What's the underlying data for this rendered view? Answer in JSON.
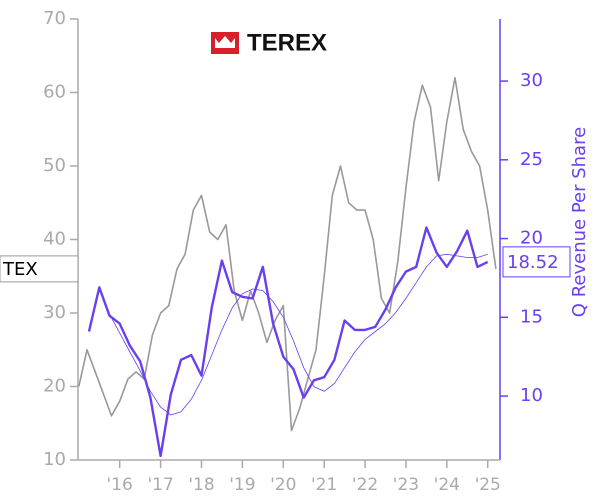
{
  "chart_data": {
    "type": "line",
    "title": "TEREX",
    "y2_label": "Q Revenue Per Share",
    "xlim": [
      2014.98,
      2025.3
    ],
    "xticks": [
      {
        "value": 2016,
        "label": "'16"
      },
      {
        "value": 2017,
        "label": "'17"
      },
      {
        "value": 2018,
        "label": "'18"
      },
      {
        "value": 2019,
        "label": "'19"
      },
      {
        "value": 2020,
        "label": "'20"
      },
      {
        "value": 2021,
        "label": "'21"
      },
      {
        "value": 2022,
        "label": "'22"
      },
      {
        "value": 2023,
        "label": "'23"
      },
      {
        "value": 2024,
        "label": "'24"
      },
      {
        "value": 2025,
        "label": "'25"
      }
    ],
    "ylim": [
      10,
      70
    ],
    "yticks": [
      10,
      20,
      30,
      40,
      50,
      60,
      70
    ],
    "y2lim": [
      5.94,
      33.94
    ],
    "y2ticks": [
      10,
      15,
      20,
      25,
      30
    ],
    "series": [
      {
        "name": "TEX",
        "color": "#999999",
        "line_width": 1.6,
        "axis": "y",
        "x": [
          2015.0,
          2015.2,
          2015.4,
          2015.6,
          2015.8,
          2016.0,
          2016.2,
          2016.4,
          2016.6,
          2016.8,
          2017.0,
          2017.2,
          2017.4,
          2017.6,
          2017.8,
          2018.0,
          2018.2,
          2018.4,
          2018.6,
          2018.8,
          2019.0,
          2019.2,
          2019.4,
          2019.6,
          2019.8,
          2020.0,
          2020.2,
          2020.4,
          2020.6,
          2020.8,
          2021.0,
          2021.2,
          2021.4,
          2021.6,
          2021.8,
          2022.0,
          2022.2,
          2022.4,
          2022.6,
          2022.8,
          2023.0,
          2023.2,
          2023.4,
          2023.6,
          2023.8,
          2024.0,
          2024.2,
          2024.4,
          2024.6,
          2024.8,
          2025.0,
          2025.2
        ],
        "values": [
          20,
          25,
          22,
          19,
          16,
          18,
          21,
          22,
          21,
          27,
          30,
          31,
          36,
          38,
          44,
          46,
          41,
          40,
          42,
          33,
          29,
          33,
          30,
          26,
          29,
          31,
          14,
          17,
          21,
          25,
          35,
          46,
          50,
          45,
          44,
          44,
          40,
          32,
          30,
          37,
          47,
          56,
          61,
          58,
          48,
          56,
          62,
          55,
          52,
          50,
          44,
          36
        ]
      },
      {
        "color": "#6a3ff0",
        "line_width": 2.4,
        "axis": "y2",
        "x": [
          2015.25,
          2015.5,
          2015.75,
          2016.0,
          2016.25,
          2016.5,
          2016.75,
          2017.0,
          2017.25,
          2017.5,
          2017.75,
          2018.0,
          2018.25,
          2018.5,
          2018.75,
          2019.0,
          2019.25,
          2019.5,
          2019.75,
          2020.0,
          2020.25,
          2020.5,
          2020.75,
          2021.0,
          2021.25,
          2021.5,
          2021.75,
          2022.0,
          2022.25,
          2022.5,
          2022.75,
          2023.0,
          2023.25,
          2023.5,
          2023.75,
          2024.0,
          2024.25,
          2024.5,
          2024.75,
          2025.0
        ],
        "values": [
          14.1,
          16.9,
          15.1,
          14.6,
          13.2,
          12.2,
          9.9,
          6.2,
          10.1,
          12.3,
          12.6,
          11.3,
          15.6,
          18.6,
          16.6,
          16.3,
          16.2,
          18.2,
          14.6,
          12.5,
          11.7,
          9.9,
          11.0,
          11.2,
          12.3,
          14.8,
          14.2,
          14.2,
          14.4,
          15.5,
          16.9,
          17.9,
          18.2,
          20.7,
          19.1,
          18.2,
          19.2,
          20.5,
          18.2,
          18.52
        ]
      },
      {
        "color": "#6a3ff0",
        "line_width": 0.8,
        "axis": "y2",
        "x": [
          2015.75,
          2016.0,
          2016.25,
          2016.5,
          2016.75,
          2017.0,
          2017.25,
          2017.5,
          2017.75,
          2018.0,
          2018.25,
          2018.5,
          2018.75,
          2019.0,
          2019.25,
          2019.5,
          2019.75,
          2020.0,
          2020.25,
          2020.5,
          2020.75,
          2021.0,
          2021.25,
          2021.5,
          2021.75,
          2022.0,
          2022.25,
          2022.5,
          2022.75,
          2023.0,
          2023.25,
          2023.5,
          2023.75,
          2024.0,
          2024.25,
          2024.5,
          2024.75,
          2025.0
        ],
        "values": [
          15.2,
          14.0,
          12.8,
          11.6,
          10.3,
          9.3,
          8.8,
          9.0,
          9.8,
          11.0,
          12.6,
          14.2,
          15.6,
          16.5,
          16.8,
          16.7,
          16.0,
          15.0,
          13.5,
          11.8,
          10.6,
          10.3,
          10.8,
          11.8,
          12.8,
          13.6,
          14.1,
          14.6,
          15.3,
          16.2,
          17.2,
          18.2,
          18.9,
          19.0,
          18.9,
          18.8,
          18.8,
          19.0
        ]
      }
    ]
  }
}
